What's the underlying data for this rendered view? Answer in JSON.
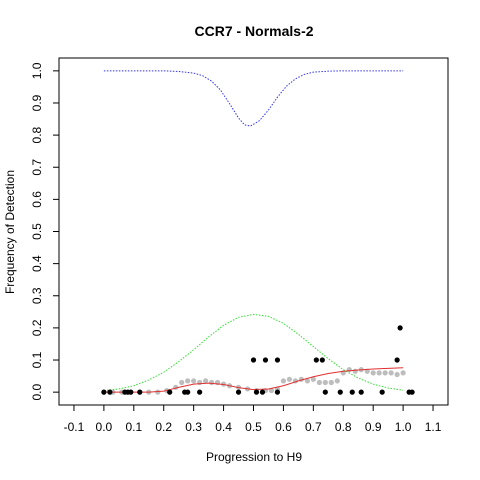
{
  "chart_data": {
    "type": "scatter",
    "title": "CCR7 - Normals-2",
    "xlabel": "Progression to H9",
    "ylabel": "Frequency of Detection",
    "xlim": [
      -0.15,
      1.15
    ],
    "ylim": [
      -0.04,
      1.04
    ],
    "grid": false,
    "x_ticks": [
      "-0.1",
      "0.0",
      "0.1",
      "0.2",
      "0.3",
      "0.4",
      "0.5",
      "0.6",
      "0.7",
      "0.8",
      "0.9",
      "1.0",
      "1.1"
    ],
    "x_tick_values": [
      -0.1,
      0.0,
      0.1,
      0.2,
      0.3,
      0.4,
      0.5,
      0.6,
      0.7,
      0.8,
      0.9,
      1.0,
      1.1
    ],
    "y_ticks": [
      "0.0",
      "0.1",
      "0.2",
      "0.3",
      "0.4",
      "0.5",
      "0.6",
      "0.7",
      "0.8",
      "0.9",
      "1.0"
    ],
    "y_tick_values": [
      0.0,
      0.1,
      0.2,
      0.3,
      0.4,
      0.5,
      0.6,
      0.7,
      0.8,
      0.9,
      1.0
    ],
    "colors": {
      "points": "#000000",
      "smoothed": "#bdbdbd",
      "fit": "#e03030",
      "green_curve": "#33dd33",
      "blue_curve": "#3333ee"
    },
    "series": [
      {
        "kind": "points",
        "x": [
          0.0,
          0.02,
          0.07,
          0.08,
          0.09,
          0.12,
          0.22,
          0.27,
          0.28,
          0.32,
          0.45,
          0.5,
          0.51,
          0.53,
          0.54,
          0.58,
          0.58,
          0.71,
          0.73,
          0.74,
          0.79,
          0.83,
          0.86,
          0.93,
          0.98,
          0.99,
          1.02,
          1.03
        ],
        "y": [
          0.0,
          0.0,
          0.0,
          0.0,
          0.0,
          0.0,
          0.0,
          0.0,
          0.0,
          0.0,
          0.0,
          0.1,
          0.0,
          0.0,
          0.1,
          0.1,
          0.0,
          0.1,
          0.1,
          0.0,
          0.0,
          0.0,
          0.0,
          0.0,
          0.1,
          0.2,
          0.0,
          0.0
        ]
      },
      {
        "kind": "smoothed",
        "x": [
          0.0,
          0.03,
          0.06,
          0.09,
          0.12,
          0.15,
          0.18,
          0.21,
          0.24,
          0.26,
          0.28,
          0.3,
          0.32,
          0.34,
          0.36,
          0.38,
          0.4,
          0.42,
          0.45,
          0.48,
          0.51,
          0.54,
          0.56,
          0.58,
          0.6,
          0.62,
          0.64,
          0.66,
          0.68,
          0.7,
          0.72,
          0.74,
          0.76,
          0.78,
          0.8,
          0.82,
          0.84,
          0.86,
          0.88,
          0.9,
          0.92,
          0.94,
          0.96,
          0.98,
          1.0
        ],
        "y": [
          0.0,
          0.0,
          0.0,
          0.0,
          0.0,
          0.0,
          0.0,
          0.005,
          0.015,
          0.03,
          0.035,
          0.035,
          0.03,
          0.035,
          0.03,
          0.03,
          0.025,
          0.02,
          0.015,
          0.01,
          0.005,
          0.005,
          0.005,
          0.01,
          0.035,
          0.04,
          0.035,
          0.04,
          0.035,
          0.04,
          0.03,
          0.03,
          0.03,
          0.035,
          0.06,
          0.07,
          0.065,
          0.07,
          0.065,
          0.06,
          0.06,
          0.06,
          0.06,
          0.055,
          0.06
        ]
      },
      {
        "kind": "fit",
        "x": [
          0.0,
          0.05,
          0.1,
          0.15,
          0.2,
          0.25,
          0.3,
          0.35,
          0.4,
          0.45,
          0.5,
          0.55,
          0.6,
          0.65,
          0.7,
          0.75,
          0.8,
          0.85,
          0.9,
          0.95,
          1.0
        ],
        "y": [
          0.0,
          0.0,
          0.0,
          0.0,
          0.003,
          0.015,
          0.025,
          0.028,
          0.024,
          0.014,
          0.008,
          0.01,
          0.02,
          0.035,
          0.048,
          0.058,
          0.065,
          0.069,
          0.072,
          0.074,
          0.076
        ]
      },
      {
        "kind": "green_curve",
        "x": [
          0.0,
          0.05,
          0.1,
          0.15,
          0.2,
          0.25,
          0.3,
          0.35,
          0.4,
          0.45,
          0.5,
          0.55,
          0.6,
          0.65,
          0.7,
          0.75,
          0.8,
          0.85,
          0.9,
          0.95,
          1.0
        ],
        "y": [
          0.005,
          0.01,
          0.02,
          0.038,
          0.062,
          0.095,
          0.132,
          0.172,
          0.208,
          0.233,
          0.242,
          0.236,
          0.214,
          0.18,
          0.142,
          0.104,
          0.07,
          0.044,
          0.025,
          0.013,
          0.006
        ]
      },
      {
        "kind": "blue_curve",
        "x": [
          0.0,
          0.1,
          0.2,
          0.25,
          0.3,
          0.33,
          0.36,
          0.39,
          0.42,
          0.45,
          0.47,
          0.49,
          0.52,
          0.55,
          0.58,
          0.61,
          0.64,
          0.67,
          0.7,
          0.75,
          0.8,
          0.9,
          1.0
        ],
        "y": [
          1.0,
          1.0,
          1.0,
          0.998,
          0.993,
          0.985,
          0.968,
          0.94,
          0.898,
          0.853,
          0.832,
          0.828,
          0.845,
          0.878,
          0.918,
          0.952,
          0.975,
          0.989,
          0.996,
          0.999,
          1.0,
          1.0,
          1.0
        ]
      }
    ]
  }
}
